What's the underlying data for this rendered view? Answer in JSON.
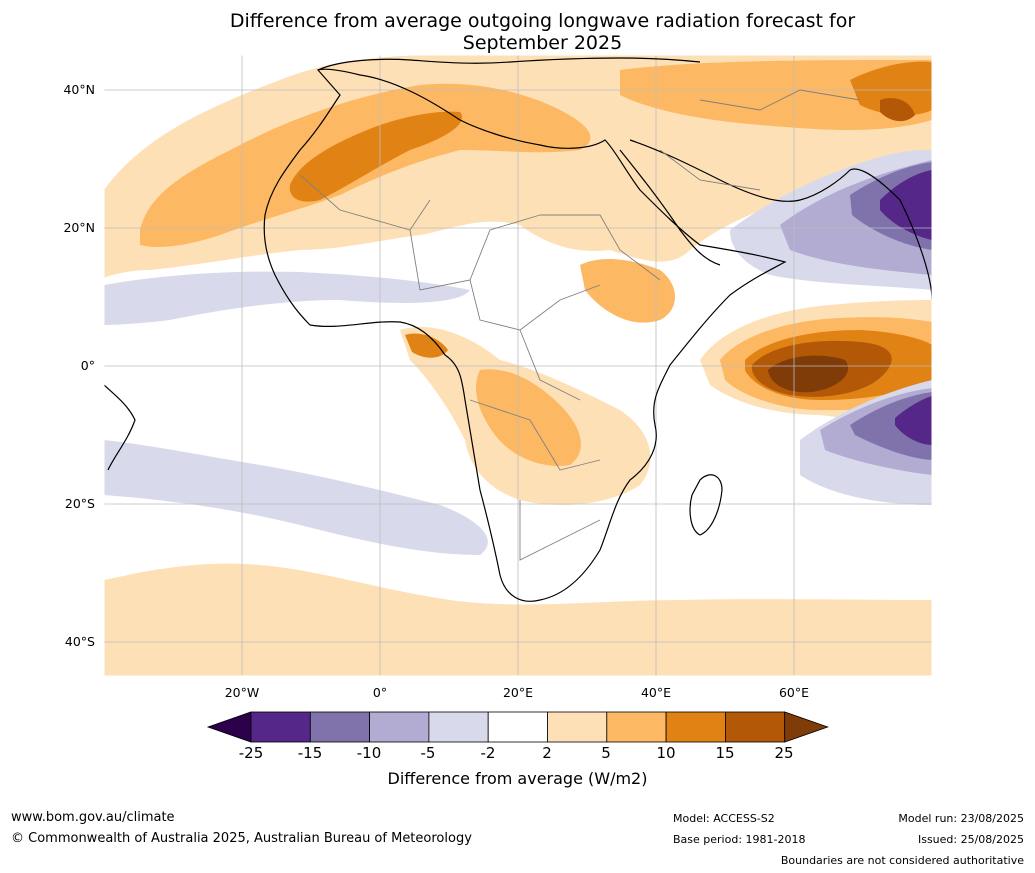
{
  "title_line1": "Difference from average outgoing longwave radiation forecast for",
  "title_line2": "September 2025",
  "lat_labels": [
    "40°N",
    "20°N",
    "0°",
    "20°S",
    "40°S"
  ],
  "lon_labels": [
    "20°W",
    "0°",
    "20°E",
    "40°E",
    "60°E"
  ],
  "colorbar": {
    "ticks": [
      "-25",
      "-15",
      "-10",
      "-5",
      "-2",
      "2",
      "5",
      "10",
      "15",
      "25"
    ],
    "colors": [
      "#2d004b",
      "#542788",
      "#8073ac",
      "#b2abd2",
      "#d8daeb",
      "#ffffff",
      "#fee0b6",
      "#fdb863",
      "#e08214",
      "#b35806",
      "#7f3b08"
    ],
    "label": "Difference from average (W/m2)"
  },
  "footer": {
    "website": "www.bom.gov.au/climate",
    "copyright": "© Commonwealth of Australia 2025, Australian Bureau of Meteorology",
    "model": "Model: ACCESS-S2",
    "base_period": "Base period: 1981-2018",
    "model_run": "Model run: 23/08/2025",
    "issued": "Issued: 25/08/2025",
    "disclaimer": "Boundaries are not considered authoritative"
  }
}
